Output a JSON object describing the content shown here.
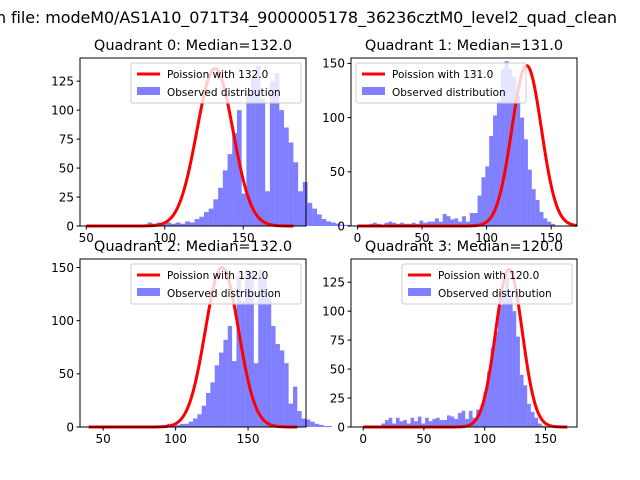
{
  "figure": {
    "suptitle": "n file: modeM0/AS1A10_071T34_9000005178_36236cztM0_level2_quad_clean"
  },
  "chart_data": [
    {
      "type": "bar",
      "title": "Quadrant 0: Median=132.0",
      "xlim": [
        46,
        190
      ],
      "ylim": [
        0,
        145
      ],
      "xticks": [
        50,
        100,
        150
      ],
      "yticks": [
        0,
        25,
        50,
        75,
        100,
        125
      ],
      "legend_position": "upper right",
      "legend": [
        "Poission with 132.0",
        "Observed distribution"
      ],
      "curve": {
        "name": "Poission with 132.0",
        "mean": 132.0,
        "peak": 136,
        "xmin": 50,
        "xmax": 182
      },
      "hist": {
        "name": "Observed distribution",
        "bin_start": 50,
        "bin_width": 3,
        "counts": [
          0,
          0,
          0,
          0,
          0,
          0,
          0,
          0,
          0,
          0,
          0,
          0,
          0,
          3,
          2,
          3,
          3,
          3,
          2,
          3,
          2,
          4,
          3,
          6,
          8,
          12,
          15,
          23,
          33,
          48,
          62,
          80,
          100,
          28,
          115,
          128,
          138,
          110,
          30,
          125,
          132,
          100,
          85,
          72,
          55,
          30,
          38,
          20,
          15,
          10,
          6,
          4,
          3,
          2,
          1,
          1,
          0,
          0,
          0,
          0,
          0
        ]
      }
    },
    {
      "type": "bar",
      "title": "Quadrant 1: Median=131.0",
      "xlim": [
        -5,
        170
      ],
      "ylim": [
        0,
        155
      ],
      "xticks": [
        0,
        50,
        100,
        150
      ],
      "yticks": [
        0,
        50,
        100,
        150
      ],
      "legend_position": "upper left",
      "legend": [
        "Poission with 131.0",
        "Observed distribution"
      ],
      "curve": {
        "name": "Poission with 131.0",
        "mean": 131.0,
        "peak": 148,
        "xmin": 0,
        "xmax": 170
      },
      "hist": {
        "name": "Observed distribution",
        "bin_start": 0,
        "bin_width": 3,
        "counts": [
          0,
          1,
          1,
          2,
          3,
          2,
          1,
          3,
          4,
          3,
          2,
          3,
          2,
          2,
          3,
          2,
          5,
          3,
          4,
          4,
          7,
          4,
          11,
          9,
          6,
          7,
          4,
          9,
          4,
          12,
          12,
          28,
          45,
          55,
          83,
          102,
          115,
          145,
          152,
          145,
          138,
          120,
          100,
          80,
          52,
          34,
          24,
          13,
          7,
          4,
          2,
          0,
          0,
          0,
          0,
          0
        ]
      }
    },
    {
      "type": "bar",
      "title": "Quadrant 2: Median=132.0",
      "xlim": [
        34,
        190
      ],
      "ylim": [
        0,
        158
      ],
      "xticks": [
        50,
        100,
        150
      ],
      "yticks": [
        0,
        50,
        100,
        150
      ],
      "legend_position": "upper right",
      "legend": [
        "Poission with 132.0",
        "Observed distribution"
      ],
      "curve": {
        "name": "Poission with 132.0",
        "mean": 132.0,
        "peak": 150,
        "xmin": 40,
        "xmax": 184
      },
      "hist": {
        "name": "Observed distribution",
        "bin_start": 40,
        "bin_width": 3,
        "counts": [
          0,
          0,
          0,
          0,
          0,
          0,
          0,
          0,
          0,
          0,
          0,
          0,
          0,
          0,
          0,
          1,
          1,
          2,
          3,
          3,
          2,
          3,
          3,
          5,
          8,
          12,
          20,
          32,
          42,
          58,
          70,
          82,
          95,
          62,
          142,
          118,
          148,
          145,
          60,
          148,
          140,
          122,
          95,
          78,
          72,
          60,
          22,
          38,
          15,
          8,
          7,
          5,
          3,
          2,
          1,
          1,
          0,
          0,
          0,
          0,
          0
        ]
      }
    },
    {
      "type": "bar",
      "title": "Quadrant 3: Median=120.0",
      "xlim": [
        -10,
        176
      ],
      "ylim": [
        0,
        145
      ],
      "xticks": [
        0,
        50,
        100,
        150
      ],
      "yticks": [
        0,
        25,
        50,
        75,
        100,
        125
      ],
      "legend_position": "upper right",
      "legend": [
        "Poission with 120.0",
        "Observed distribution"
      ],
      "curve": {
        "name": "Poission with 120.0",
        "mean": 120.0,
        "peak": 136,
        "xmin": 0,
        "xmax": 168
      },
      "hist": {
        "name": "Observed distribution",
        "bin_start": 0,
        "bin_width": 3,
        "counts": [
          0,
          0,
          0,
          0,
          0,
          3,
          6,
          8,
          3,
          8,
          5,
          6,
          3,
          8,
          5,
          9,
          3,
          8,
          5,
          7,
          8,
          6,
          6,
          10,
          9,
          7,
          12,
          14,
          7,
          14,
          8,
          15,
          17,
          30,
          48,
          68,
          82,
          105,
          118,
          130,
          115,
          100,
          78,
          45,
          36,
          20,
          13,
          8,
          3,
          1,
          0,
          0,
          0,
          0,
          0,
          0,
          0
        ]
      }
    }
  ]
}
